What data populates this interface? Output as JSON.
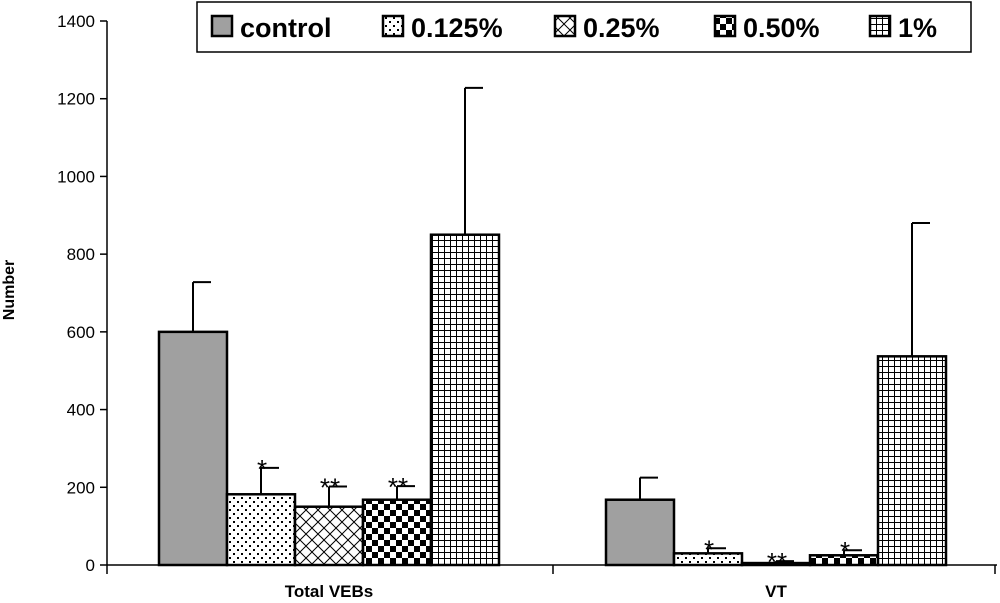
{
  "chart_data": {
    "type": "bar",
    "title": "",
    "xlabel": "",
    "ylabel": "Number",
    "ylim": [
      0,
      1400
    ],
    "yticks": [
      0,
      200,
      400,
      600,
      800,
      1000,
      1200,
      1400
    ],
    "grid": false,
    "legend_position": "top",
    "categories": [
      "Total VEBs",
      "VT"
    ],
    "series": [
      {
        "name": "control",
        "pattern": "solid-gray",
        "values": [
          600,
          168
        ],
        "error": [
          128,
          57
        ],
        "sig": [
          "",
          ""
        ]
      },
      {
        "name": "0.125%",
        "pattern": "dots",
        "values": [
          182,
          30
        ],
        "error": [
          68,
          13
        ],
        "sig": [
          "*",
          "*"
        ]
      },
      {
        "name": "0.25%",
        "pattern": "crosshatch",
        "values": [
          150,
          5
        ],
        "error": [
          52,
          5
        ],
        "sig": [
          "**",
          "**"
        ]
      },
      {
        "name": "0.50%",
        "pattern": "checker",
        "values": [
          168,
          25
        ],
        "error": [
          35,
          13
        ],
        "sig": [
          "**",
          "*"
        ]
      },
      {
        "name": "1%",
        "pattern": "grid",
        "values": [
          850,
          537
        ],
        "error": [
          378,
          343
        ],
        "sig": [
          "",
          ""
        ]
      }
    ],
    "colors": {
      "control": "#a0a0a0",
      "stroke": "#000000",
      "background": "#ffffff"
    }
  }
}
